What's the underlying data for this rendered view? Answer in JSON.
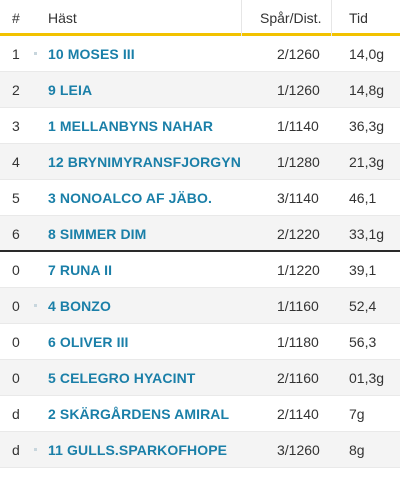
{
  "table": {
    "headers": {
      "place": "#",
      "horse": "Häst",
      "track_dist": "Spår/Dist.",
      "time": "Tid"
    },
    "rows": [
      {
        "place": "1",
        "horse": "10 MOSES III",
        "track_dist": "2/1260",
        "time": "14,0g"
      },
      {
        "place": "2",
        "horse": "9 LEIA",
        "track_dist": "1/1260",
        "time": "14,8g"
      },
      {
        "place": "3",
        "horse": "1 MELLANBYNS NAHAR",
        "track_dist": "1/1140",
        "time": "36,3g"
      },
      {
        "place": "4",
        "horse": "12 BRYNIMYRANSFJORGYN",
        "track_dist": "1/1280",
        "time": "21,3g"
      },
      {
        "place": "5",
        "horse": "3 NONOALCO AF JÄBO.",
        "track_dist": "3/1140",
        "time": "46,1"
      },
      {
        "place": "6",
        "horse": "8 SIMMER DIM",
        "track_dist": "2/1220",
        "time": "33,1g"
      },
      {
        "place": "0",
        "horse": "7 RUNA II",
        "track_dist": "1/1220",
        "time": "39,1"
      },
      {
        "place": "0",
        "horse": "4 BONZO",
        "track_dist": "1/1160",
        "time": "52,4"
      },
      {
        "place": "0",
        "horse": "6 OLIVER III",
        "track_dist": "1/1180",
        "time": "56,3"
      },
      {
        "place": "0",
        "horse": "5 CELEGRO HYACINT",
        "track_dist": "2/1160",
        "time": "01,3g"
      },
      {
        "place": "d",
        "horse": "2 SKÄRGÅRDENS AMIRAL",
        "track_dist": "2/1140",
        "time": "7g"
      },
      {
        "place": "d",
        "horse": "11 GULLS.SPARKOFHOPE",
        "track_dist": "3/1260",
        "time": "8g"
      }
    ]
  },
  "colors": {
    "accent_underline": "#f2c200",
    "horse_link": "#1a7fa8",
    "alt_row_bg": "#f4f4f4"
  }
}
